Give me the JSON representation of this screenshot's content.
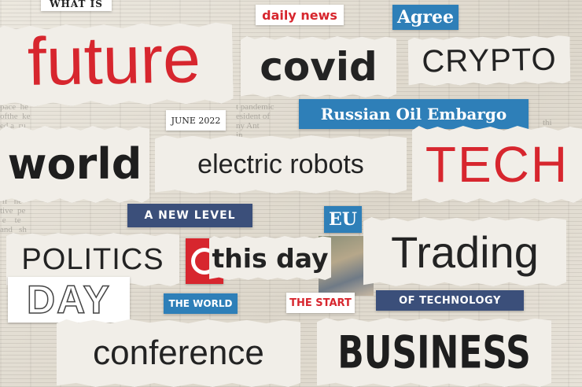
{
  "colors": {
    "red": "#d7262e",
    "blue": "#2e7fb8",
    "dark": "#232323",
    "navy": "#3b4f7a"
  },
  "scraps": {
    "what_is": "WHAT IS",
    "daily_news": "daily news",
    "agree": "Agree",
    "future": "future",
    "covid": "covid",
    "crypto": "CRYPTO",
    "june": "JUNE 2022",
    "russian": "Russian Oil Embargo",
    "world": "world",
    "electric": "electric robots",
    "tech": "TECH",
    "new_level": "A NEW LEVEL",
    "eu": "EU",
    "politics": "POLITICS",
    "this_day": "this day",
    "trading": "Trading",
    "day": "DAY",
    "the_world": "THE WORLD",
    "the_start": "THE START",
    "of_technology": "OF TECHNOLOGY",
    "conference": "conference",
    "business": "BUSINESS"
  }
}
